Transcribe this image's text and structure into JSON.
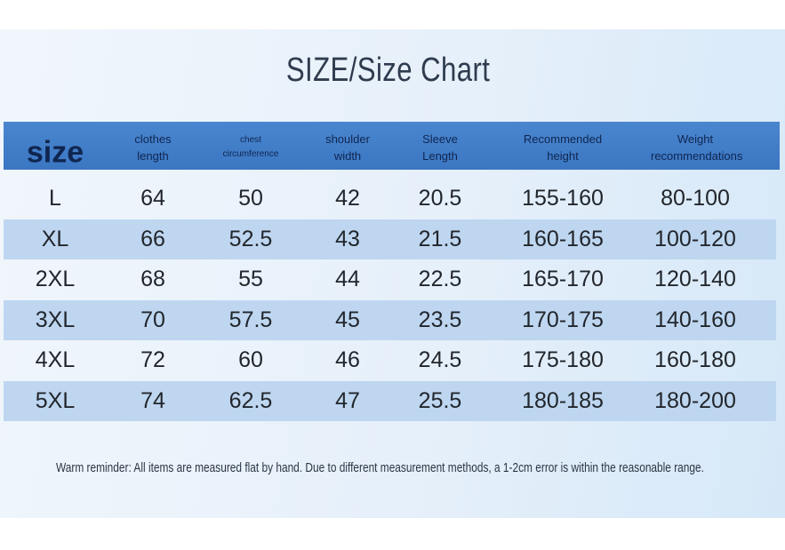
{
  "title": "SIZE/Size Chart",
  "table": {
    "header": [
      "size",
      "clothes length",
      "chest circumference",
      "shoulder width",
      "Sleeve Length",
      "Recommended height",
      "Weight recommendations"
    ],
    "rows": [
      [
        "L",
        "64",
        "50",
        "42",
        "20.5",
        "155-160",
        "80-100"
      ],
      [
        "XL",
        "66",
        "52.5",
        "43",
        "21.5",
        "160-165",
        "100-120"
      ],
      [
        "2XL",
        "68",
        "55",
        "44",
        "22.5",
        "165-170",
        "120-140"
      ],
      [
        "3XL",
        "70",
        "57.5",
        "45",
        "23.5",
        "170-175",
        "140-160"
      ],
      [
        "4XL",
        "72",
        "60",
        "46",
        "24.5",
        "175-180",
        "160-180"
      ],
      [
        "5XL",
        "74",
        "62.5",
        "47",
        "25.5",
        "180-185",
        "180-200"
      ]
    ]
  },
  "note": "Warm reminder: All items are measured flat by hand. Due to different measurement methods, a 1-2cm error is within the reasonable range."
}
